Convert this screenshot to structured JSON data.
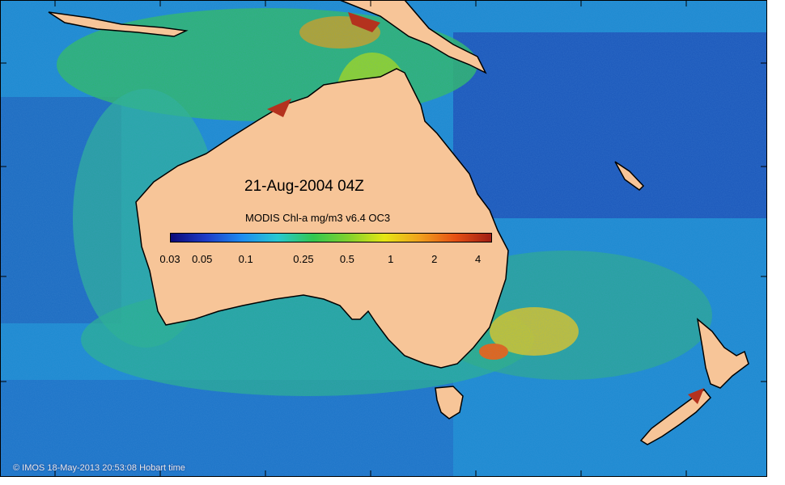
{
  "map": {
    "date_label": "21-Aug-2004 04Z",
    "product_label": "MODIS Chl-a mg/m3 v6.4 OC3",
    "credit": "© IMOS 18-May-2013 20:53:08 Hobart time",
    "colorbar": {
      "scale": "log",
      "range": [
        0.03,
        5
      ],
      "ticks": [
        "0.03",
        "0.05",
        "0.1",
        "0.25",
        "0.5",
        "1",
        "2",
        "4"
      ],
      "colors": [
        "#0a0a78",
        "#1e3cc8",
        "#1e8cf0",
        "#28c8d2",
        "#32c850",
        "#82d22d",
        "#e6e614",
        "#f0a01e",
        "#e65014",
        "#a01e14"
      ]
    },
    "land_color": "#f7c598",
    "ocean_colors": {
      "deep_oligotrophic": "#1e4ab4",
      "open_ocean": "#1e8cd2",
      "shelf": "#28b48c",
      "coastal_bloom": "#e6d21e",
      "high_bloom": "#b4321e"
    }
  }
}
